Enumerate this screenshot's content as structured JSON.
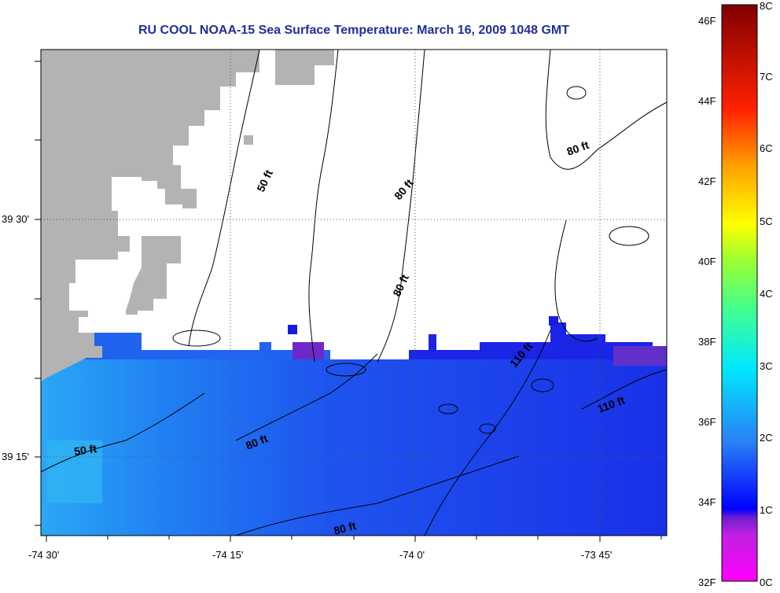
{
  "title": "RU COOL  NOAA-15  Sea Surface Temperature:  March 16, 2009 1048 GMT",
  "map": {
    "x_ticks": [
      "-74 30'",
      "-74 15'",
      "-74 0'",
      "-73 45'"
    ],
    "y_ticks": [
      "39 30'",
      "39 15'"
    ],
    "contour_labels": [
      "50 ft",
      "80 ft",
      "80 ft",
      "80 ft",
      "110 ft",
      "110 ft",
      "50 ft",
      "80 ft",
      "80 ft"
    ]
  },
  "colorbar": {
    "fahrenheit_labels": [
      "46F",
      "44F",
      "42F",
      "40F",
      "38F",
      "36F",
      "34F",
      "32F"
    ],
    "celsius_labels": [
      "8C",
      "7C",
      "6C",
      "5C",
      "4C",
      "3C",
      "2C",
      "1C",
      "0C"
    ]
  },
  "colors": {
    "land": "#b3b3b3",
    "water_main": "#1f5bf0",
    "water_deep": "#1a22e8",
    "water_coast": "#2aa7f5",
    "title": "#1f2f9a"
  }
}
